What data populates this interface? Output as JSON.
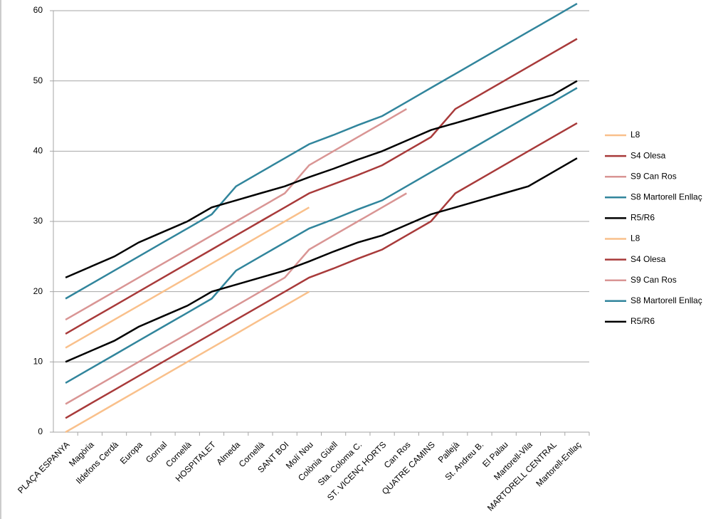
{
  "chart_data": {
    "type": "line",
    "categories": [
      "PLAÇA ESPANYA",
      "Magòria",
      "Ildefons Cerdà",
      "Europa",
      "Gornal",
      "Cornellà",
      "HOSPITALET",
      "Almeda",
      "Cornellà",
      "SANT BOI",
      "Molí Nou",
      "Colònia Güell",
      "Sta. Coloma C.",
      "ST. VICENÇ HORTS",
      "Can Ros",
      "QUATRE CAMINS",
      "Pallejà",
      "St. Andreu B.",
      "El Palau",
      "Martorell-Vila",
      "MARTORELL CENTRAL",
      "Martorell-Enllaç"
    ],
    "ylim": [
      0,
      60
    ],
    "yticks": [
      0,
      10,
      20,
      30,
      40,
      50,
      60
    ],
    "grid": true,
    "legend": "right",
    "series": [
      {
        "name": "L8",
        "color": "#f9c08b",
        "values": [
          12,
          14,
          16,
          18,
          20,
          22,
          24,
          26,
          28,
          30,
          32,
          null,
          null,
          null,
          null,
          null,
          null,
          null,
          null,
          null,
          null,
          null
        ]
      },
      {
        "name": "S4 Olesa",
        "color": "#a83a3a",
        "values": [
          14,
          16,
          18,
          20,
          22,
          24,
          26,
          28,
          30,
          32,
          34,
          35.3,
          36.6,
          38,
          40,
          42,
          46,
          48,
          50,
          52,
          54,
          56
        ]
      },
      {
        "name": "S9 Can Ros",
        "color": "#d99594",
        "values": [
          16,
          18,
          20,
          22,
          24,
          26,
          28,
          30,
          32,
          34,
          38,
          40,
          42,
          44,
          46,
          null,
          null,
          null,
          null,
          null,
          null,
          null
        ]
      },
      {
        "name": "S8 Martorell Enllaç",
        "color": "#31859c",
        "values": [
          19,
          21,
          23,
          25,
          27,
          29,
          31,
          35,
          37,
          39,
          41,
          42.3,
          43.7,
          45,
          47,
          49,
          51,
          53,
          55,
          57,
          59,
          61
        ]
      },
      {
        "name": "R5/R6",
        "color": "#000000",
        "values": [
          22,
          23.5,
          25,
          27,
          28.5,
          30,
          32,
          33,
          34,
          35,
          36.3,
          37.5,
          38.8,
          40,
          41.5,
          43,
          44,
          45,
          46,
          47,
          48,
          50
        ]
      },
      {
        "name": "L8",
        "color": "#f9c08b",
        "values": [
          0,
          2,
          4,
          6,
          8,
          10,
          12,
          14,
          16,
          18,
          20,
          null,
          null,
          null,
          null,
          null,
          null,
          null,
          null,
          null,
          null,
          null
        ]
      },
      {
        "name": "S4 Olesa",
        "color": "#a83a3a",
        "values": [
          2,
          4,
          6,
          8,
          10,
          12,
          14,
          16,
          18,
          20,
          22,
          23.3,
          24.7,
          26,
          28,
          30,
          34,
          36,
          38,
          40,
          42,
          44
        ]
      },
      {
        "name": "S9 Can Ros",
        "color": "#d99594",
        "values": [
          4,
          6,
          8,
          10,
          12,
          14,
          16,
          18,
          20,
          22,
          26,
          28,
          30,
          32,
          34,
          null,
          null,
          null,
          null,
          null,
          null,
          null
        ]
      },
      {
        "name": "S8 Martorell Enllaç",
        "color": "#31859c",
        "values": [
          7,
          9,
          11,
          13,
          15,
          17,
          19,
          23,
          25,
          27,
          29,
          30.3,
          31.7,
          33,
          35,
          37,
          39,
          41,
          43,
          45,
          47,
          49
        ]
      },
      {
        "name": "R5/R6",
        "color": "#000000",
        "values": [
          10,
          11.5,
          13,
          15,
          16.5,
          18,
          20,
          21,
          22,
          23,
          24.3,
          25.7,
          27,
          28,
          29.5,
          31,
          32,
          33,
          34,
          35,
          37,
          39
        ]
      }
    ]
  }
}
